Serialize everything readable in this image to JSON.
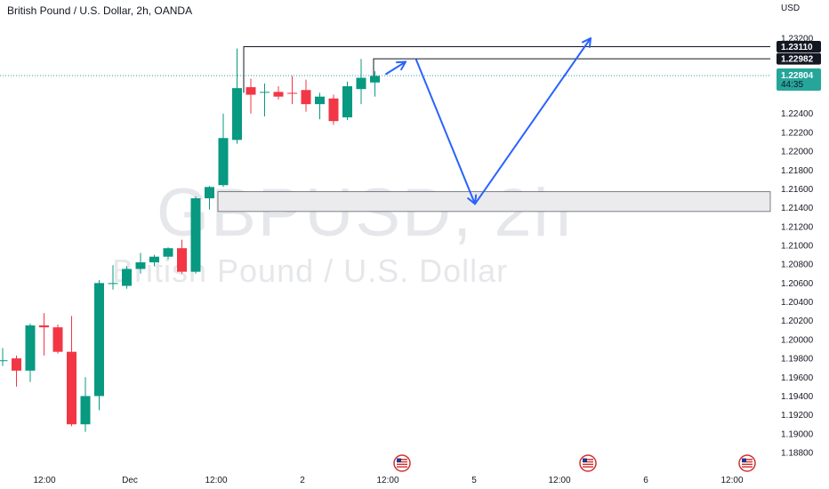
{
  "header": {
    "title": "British Pound / U.S. Dollar, 2h, OANDA",
    "currency": "USD"
  },
  "watermark": {
    "symbol": "GBPUSD, 2h",
    "name": "British Pound / U.S. Dollar"
  },
  "colors": {
    "up": "#089981",
    "down": "#f23645",
    "arrow": "#2962ff",
    "current": "#26a69a",
    "zone_fill": "#ebebed",
    "grid_text": "#131722"
  },
  "chart_data": {
    "type": "candlestick",
    "title": "British Pound / U.S. Dollar, 2h, OANDA",
    "ylim": [
      1.187,
      1.2345
    ],
    "y_ticks": [
      "1.23200",
      "1.22400",
      "1.22200",
      "1.22000",
      "1.21800",
      "1.21600",
      "1.21400",
      "1.21200",
      "1.21000",
      "1.20800",
      "1.20600",
      "1.20400",
      "1.20200",
      "1.20000",
      "1.19800",
      "1.19600",
      "1.19400",
      "1.19200",
      "1.19000",
      "1.18800"
    ],
    "x_ticks": [
      "12:00",
      "Dec",
      "12:00",
      "2",
      "12:00",
      "5",
      "12:00",
      "6",
      "12:00"
    ],
    "candles": [
      {
        "o": 1.1978,
        "h": 1.1991,
        "l": 1.1972,
        "c": 1.1978
      },
      {
        "o": 1.198,
        "h": 1.1983,
        "l": 1.195,
        "c": 1.1967
      },
      {
        "o": 1.1967,
        "h": 1.2017,
        "l": 1.1955,
        "c": 1.2015
      },
      {
        "o": 1.2015,
        "h": 1.2028,
        "l": 1.1983,
        "c": 1.2013
      },
      {
        "o": 1.2013,
        "h": 1.2016,
        "l": 1.1985,
        "c": 1.1987
      },
      {
        "o": 1.1987,
        "h": 1.2025,
        "l": 1.1908,
        "c": 1.191
      },
      {
        "o": 1.191,
        "h": 1.196,
        "l": 1.1902,
        "c": 1.194
      },
      {
        "o": 1.194,
        "h": 1.2063,
        "l": 1.1925,
        "c": 1.206
      },
      {
        "o": 1.2059,
        "h": 1.2079,
        "l": 1.2053,
        "c": 1.206
      },
      {
        "o": 1.2057,
        "h": 1.2078,
        "l": 1.2054,
        "c": 1.2075
      },
      {
        "o": 1.2075,
        "h": 1.2092,
        "l": 1.207,
        "c": 1.2082
      },
      {
        "o": 1.2082,
        "h": 1.209,
        "l": 1.2078,
        "c": 1.2088
      },
      {
        "o": 1.2088,
        "h": 1.2098,
        "l": 1.2085,
        "c": 1.2097
      },
      {
        "o": 1.2097,
        "h": 1.2106,
        "l": 1.207,
        "c": 1.2072
      },
      {
        "o": 1.2072,
        "h": 1.2152,
        "l": 1.207,
        "c": 1.215
      },
      {
        "o": 1.215,
        "h": 1.2163,
        "l": 1.2138,
        "c": 1.2162
      },
      {
        "o": 1.2164,
        "h": 1.224,
        "l": 1.2162,
        "c": 1.2214
      },
      {
        "o": 1.2212,
        "h": 1.2309,
        "l": 1.2208,
        "c": 1.2267
      },
      {
        "o": 1.2268,
        "h": 1.2277,
        "l": 1.224,
        "c": 1.226
      },
      {
        "o": 1.2263,
        "h": 1.2272,
        "l": 1.2237,
        "c": 1.2263
      },
      {
        "o": 1.2263,
        "h": 1.2269,
        "l": 1.2255,
        "c": 1.2258
      },
      {
        "o": 1.2262,
        "h": 1.228,
        "l": 1.225,
        "c": 1.2261
      },
      {
        "o": 1.2265,
        "h": 1.2276,
        "l": 1.2242,
        "c": 1.225
      },
      {
        "o": 1.225,
        "h": 1.2262,
        "l": 1.2234,
        "c": 1.2258
      },
      {
        "o": 1.2256,
        "h": 1.226,
        "l": 1.2228,
        "c": 1.2232
      },
      {
        "o": 1.2236,
        "h": 1.2274,
        "l": 1.2233,
        "c": 1.2269
      },
      {
        "o": 1.2266,
        "h": 1.2298,
        "l": 1.225,
        "c": 1.2278
      },
      {
        "o": 1.2273,
        "h": 1.2285,
        "l": 1.2258,
        "c": 1.228
      }
    ],
    "horizontal_levels": [
      {
        "label": "1.23110",
        "value": 1.2311
      },
      {
        "label": "1.22982",
        "value": 1.22982
      }
    ],
    "current_price": {
      "label": "1.22804",
      "countdown": "44:35",
      "value": 1.22804
    },
    "zone": {
      "y_range": [
        1.2136,
        1.2157
      ]
    },
    "projection_arrows": [
      {
        "from_value": 1.2282,
        "to_value": 1.2295
      },
      {
        "from_value": 1.2297,
        "to_value": 1.2144
      },
      {
        "from_value": 1.2144,
        "to_value": 1.232
      }
    ],
    "event_markers": 3
  }
}
